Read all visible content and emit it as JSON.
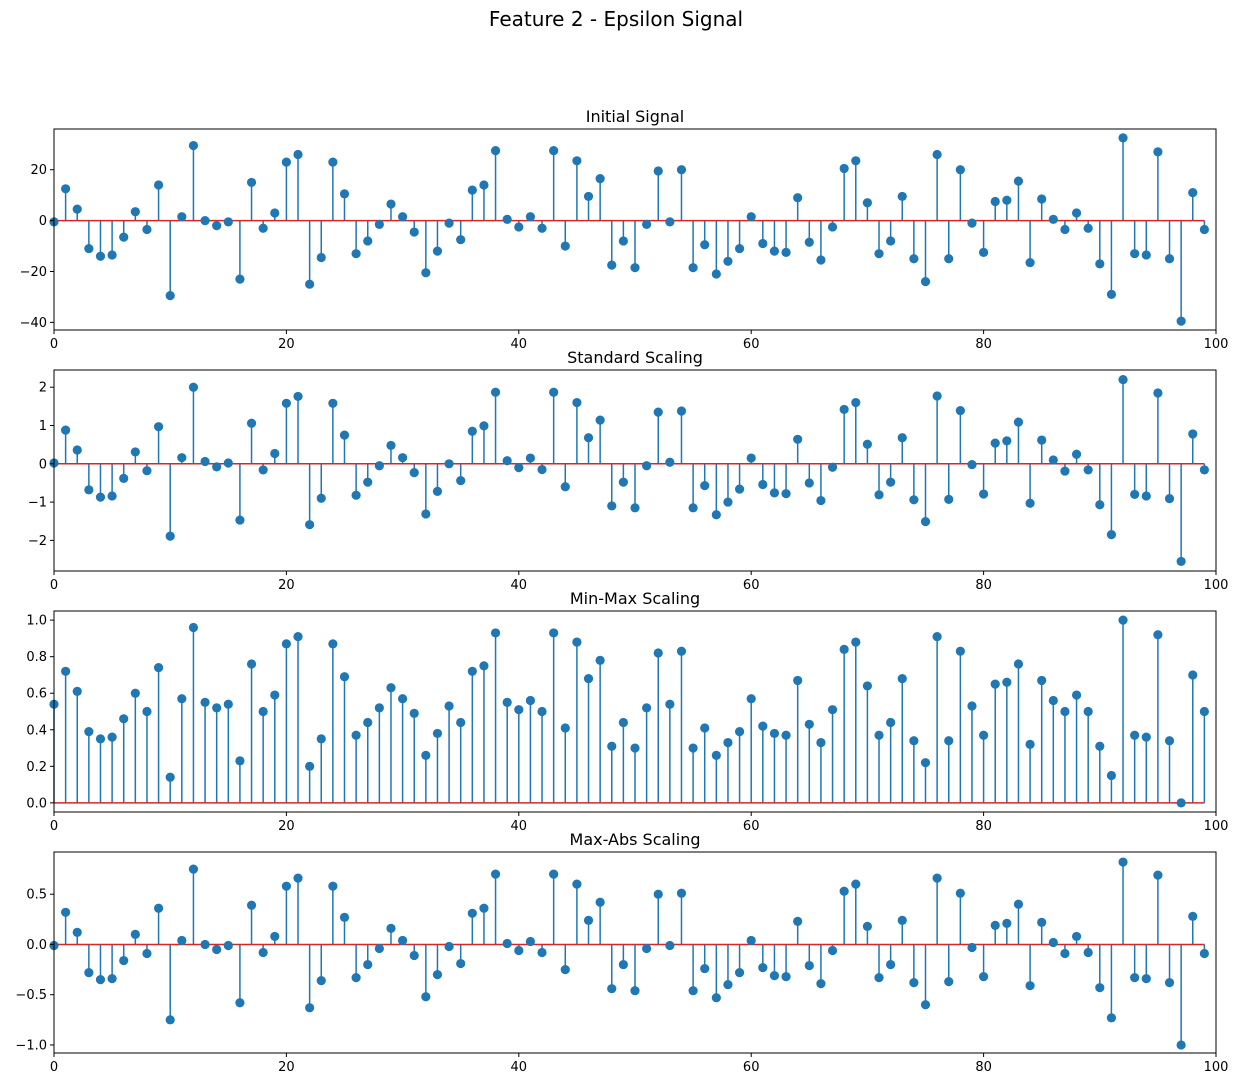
{
  "figure_title": "Feature 2 - Epsilon Signal",
  "colors": {
    "stem": "#1f77b4",
    "baseline": "#d62728",
    "axes": "#000000",
    "background": "#ffffff"
  },
  "chart_data": [
    {
      "type": "stem",
      "title": "Initial Signal",
      "xlim": [
        0,
        100
      ],
      "ylim": [
        -43,
        36
      ],
      "xticks": [
        0,
        20,
        40,
        60,
        80,
        100
      ],
      "yticks": [
        -40,
        -20,
        0,
        20
      ],
      "baseline": 0,
      "grid": false,
      "values": [
        -0.5,
        12.5,
        4.5,
        -11,
        -14,
        -13.5,
        -6.5,
        3.5,
        -3.5,
        14,
        -29.5,
        1.5,
        29.5,
        0,
        -2,
        -0.5,
        -23,
        15,
        -3,
        3,
        23,
        26,
        -25,
        -14.5,
        23,
        10.5,
        -13,
        -8,
        -1.5,
        6.5,
        1.5,
        -4.5,
        -20.5,
        -12,
        -1,
        -7.5,
        12,
        14,
        27.5,
        0.5,
        -2.5,
        1.5,
        -3,
        27.5,
        -10,
        23.5,
        9.5,
        16.5,
        -17.5,
        -8,
        -18.5,
        -1.5,
        19.5,
        -0.5,
        20,
        -18.5,
        -9.5,
        -21,
        -16,
        -11,
        1.5,
        -9,
        -12,
        -12.5,
        9,
        -8.5,
        -15.5,
        -2.5,
        20.5,
        23.5,
        7,
        -13,
        -8,
        9.5,
        -15,
        -24,
        26,
        -15,
        20,
        -1,
        -12.5,
        7.5,
        8,
        15.5,
        -16.5,
        8.5,
        0.5,
        -3.5,
        3,
        -3,
        -17,
        -29,
        32.5,
        -13,
        -13.5,
        27,
        -15,
        -39.5,
        11,
        -3.5
      ]
    },
    {
      "type": "stem",
      "title": "Standard Scaling",
      "xlim": [
        0,
        100
      ],
      "ylim": [
        -2.8,
        2.45
      ],
      "xticks": [
        0,
        20,
        40,
        60,
        80,
        100
      ],
      "yticks": [
        -2,
        -1,
        0,
        1,
        2
      ],
      "baseline": 0,
      "grid": false,
      "values": [
        0.02,
        0.88,
        0.36,
        -0.68,
        -0.87,
        -0.84,
        -0.38,
        0.31,
        -0.18,
        0.97,
        -1.89,
        0.16,
        2.0,
        0.06,
        -0.08,
        0.02,
        -1.47,
        1.06,
        -0.16,
        0.27,
        1.58,
        1.76,
        -1.59,
        -0.9,
        1.58,
        0.75,
        -0.82,
        -0.48,
        -0.05,
        0.48,
        0.16,
        -0.23,
        -1.31,
        -0.72,
        0.0,
        -0.44,
        0.85,
        0.99,
        1.87,
        0.08,
        -0.1,
        0.15,
        -0.15,
        1.87,
        -0.6,
        1.6,
        0.68,
        1.14,
        -1.1,
        -0.48,
        -1.15,
        -0.05,
        1.35,
        0.04,
        1.38,
        -1.15,
        -0.57,
        -1.33,
        -1.0,
        -0.66,
        0.15,
        -0.54,
        -0.76,
        -0.78,
        0.64,
        -0.5,
        -0.96,
        -0.09,
        1.42,
        1.6,
        0.51,
        -0.81,
        -0.48,
        0.68,
        -0.94,
        -1.51,
        1.77,
        -0.93,
        1.39,
        -0.02,
        -0.79,
        0.54,
        0.6,
        1.09,
        -1.03,
        0.62,
        0.1,
        -0.19,
        0.25,
        -0.16,
        -1.07,
        -1.85,
        2.2,
        -0.8,
        -0.84,
        1.85,
        -0.91,
        -2.55,
        0.78,
        -0.16
      ]
    },
    {
      "type": "stem",
      "title": "Min-Max Scaling",
      "xlim": [
        0,
        100
      ],
      "ylim": [
        -0.05,
        1.05
      ],
      "xticks": [
        0,
        20,
        40,
        60,
        80,
        100
      ],
      "yticks": [
        0.0,
        0.2,
        0.4,
        0.6,
        0.8,
        1.0
      ],
      "baseline": 0,
      "grid": false,
      "values": [
        0.54,
        0.72,
        0.61,
        0.39,
        0.35,
        0.36,
        0.46,
        0.6,
        0.5,
        0.74,
        0.14,
        0.57,
        0.96,
        0.55,
        0.52,
        0.54,
        0.23,
        0.76,
        0.5,
        0.59,
        0.87,
        0.91,
        0.2,
        0.35,
        0.87,
        0.69,
        0.37,
        0.44,
        0.52,
        0.63,
        0.57,
        0.49,
        0.26,
        0.38,
        0.53,
        0.44,
        0.72,
        0.75,
        0.93,
        0.55,
        0.51,
        0.56,
        0.5,
        0.93,
        0.41,
        0.88,
        0.68,
        0.78,
        0.31,
        0.44,
        0.3,
        0.52,
        0.82,
        0.54,
        0.83,
        0.3,
        0.41,
        0.26,
        0.33,
        0.39,
        0.57,
        0.42,
        0.38,
        0.37,
        0.67,
        0.43,
        0.33,
        0.51,
        0.84,
        0.88,
        0.64,
        0.37,
        0.44,
        0.68,
        0.34,
        0.22,
        0.91,
        0.34,
        0.83,
        0.53,
        0.37,
        0.65,
        0.66,
        0.76,
        0.32,
        0.67,
        0.56,
        0.5,
        0.59,
        0.5,
        0.31,
        0.15,
        1.0,
        0.37,
        0.36,
        0.92,
        0.34,
        0.0,
        0.7,
        0.5
      ]
    },
    {
      "type": "stem",
      "title": "Max-Abs Scaling",
      "xlim": [
        0,
        100
      ],
      "ylim": [
        -1.08,
        0.92
      ],
      "xticks": [
        0,
        20,
        40,
        60,
        80,
        100
      ],
      "yticks": [
        -1.0,
        -0.5,
        0.0,
        0.5
      ],
      "baseline": 0,
      "grid": false,
      "values": [
        -0.01,
        0.32,
        0.12,
        -0.28,
        -0.35,
        -0.34,
        -0.16,
        0.1,
        -0.09,
        0.36,
        -0.75,
        0.04,
        0.75,
        0.0,
        -0.05,
        -0.01,
        -0.58,
        0.39,
        -0.08,
        0.08,
        0.58,
        0.66,
        -0.63,
        -0.36,
        0.58,
        0.27,
        -0.33,
        -0.2,
        -0.04,
        0.16,
        0.04,
        -0.11,
        -0.52,
        -0.3,
        -0.02,
        -0.19,
        0.31,
        0.36,
        0.7,
        0.01,
        -0.06,
        0.03,
        -0.08,
        0.7,
        -0.25,
        0.6,
        0.24,
        0.42,
        -0.44,
        -0.2,
        -0.46,
        -0.04,
        0.5,
        -0.01,
        0.51,
        -0.46,
        -0.24,
        -0.53,
        -0.4,
        -0.28,
        0.04,
        -0.23,
        -0.31,
        -0.32,
        0.23,
        -0.21,
        -0.39,
        -0.06,
        0.53,
        0.6,
        0.18,
        -0.33,
        -0.2,
        0.24,
        -0.38,
        -0.6,
        0.66,
        -0.37,
        0.51,
        -0.03,
        -0.32,
        0.19,
        0.21,
        0.4,
        -0.41,
        0.22,
        0.02,
        -0.09,
        0.08,
        -0.08,
        -0.43,
        -0.73,
        0.82,
        -0.33,
        -0.34,
        0.69,
        -0.38,
        -1.0,
        0.28,
        -0.09
      ]
    }
  ]
}
